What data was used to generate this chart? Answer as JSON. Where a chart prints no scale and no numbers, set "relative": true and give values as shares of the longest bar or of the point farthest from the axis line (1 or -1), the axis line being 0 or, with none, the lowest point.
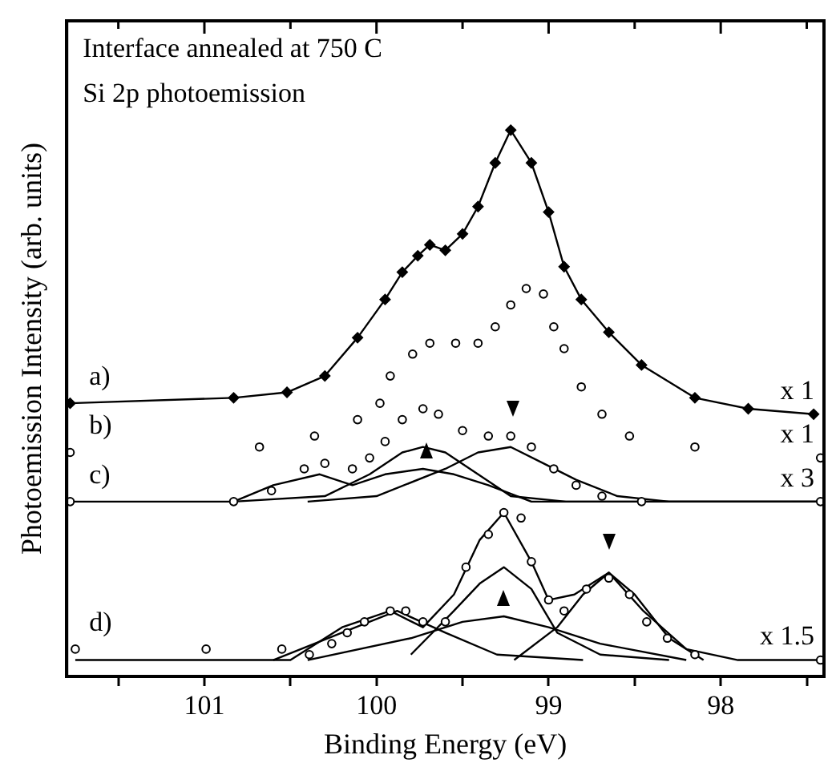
{
  "chart_data": {
    "type": "line",
    "relative": true,
    "xlabel": "Binding Energy (eV)",
    "ylabel": "Photoemission Intensity (arb. units)",
    "xlim": [
      101.8,
      97.4
    ],
    "xticks": [
      {
        "value": 101.5,
        "label": null
      },
      101,
      {
        "value": 100.5,
        "label": null
      },
      100,
      {
        "value": 99.5,
        "label": null
      },
      99,
      {
        "value": 98.5,
        "label": null
      },
      98,
      {
        "value": 97.5,
        "label": null
      }
    ],
    "tick_labels": "x",
    "grid": false,
    "legend": false,
    "series": [
      {
        "marker": "diamond",
        "color": "#000000",
        "x": [
          101.78,
          100.83,
          100.52,
          100.3,
          100.11,
          99.95,
          99.85,
          99.76,
          99.69,
          99.6,
          99.5,
          99.41,
          99.31,
          99.22,
          99.1,
          99.0,
          98.91,
          98.81,
          98.65,
          98.46,
          98.15,
          97.84,
          97.46
        ],
        "values": [
          0.5,
          0.51,
          0.52,
          0.55,
          0.62,
          0.69,
          0.74,
          0.77,
          0.79,
          0.78,
          0.81,
          0.86,
          0.94,
          1.0,
          0.94,
          0.85,
          0.75,
          0.69,
          0.63,
          0.57,
          0.51,
          0.49,
          0.48
        ]
      },
      {
        "type": "scatter",
        "marker": "circle",
        "color": "#000000",
        "x": [
          101.78,
          100.68,
          100.36,
          100.11,
          99.98,
          99.92,
          99.79,
          99.69,
          99.54,
          99.41,
          99.31,
          99.22,
          99.13,
          99.03,
          98.97,
          98.91,
          98.81,
          98.69,
          98.53,
          98.15,
          97.42
        ],
        "values": [
          0.41,
          0.42,
          0.44,
          0.47,
          0.5,
          0.55,
          0.59,
          0.61,
          0.61,
          0.61,
          0.64,
          0.68,
          0.71,
          0.7,
          0.64,
          0.6,
          0.53,
          0.48,
          0.44,
          0.42,
          0.4
        ]
      },
      {
        "type": "scatter",
        "marker": "circle",
        "color": "#000000",
        "x": [
          101.78,
          100.83,
          100.61,
          100.42,
          100.3,
          100.14,
          100.04,
          99.95,
          99.85,
          99.73,
          99.64,
          99.5,
          99.35,
          99.22,
          99.1,
          98.97,
          98.84,
          98.69,
          98.46,
          97.42
        ],
        "values": [
          0.32,
          0.32,
          0.34,
          0.38,
          0.39,
          0.38,
          0.4,
          0.43,
          0.47,
          0.49,
          0.48,
          0.45,
          0.44,
          0.44,
          0.42,
          0.38,
          0.35,
          0.33,
          0.32,
          0.32
        ]
      },
      {
        "type": "line",
        "marker": "none",
        "color": "#000000",
        "x": [
          101.78,
          100.83,
          100.6,
          100.33,
          100.14,
          99.95,
          99.73,
          99.55,
          99.35,
          99.1,
          98.69,
          97.42
        ],
        "values": [
          0.32,
          0.32,
          0.35,
          0.37,
          0.35,
          0.37,
          0.38,
          0.37,
          0.35,
          0.32,
          0.32,
          0.32
        ]
      },
      {
        "type": "line",
        "marker": "none",
        "color": "#000000",
        "x": [
          100.83,
          100.3,
          100.04,
          99.85,
          99.73,
          99.6,
          99.41,
          99.22,
          98.9,
          97.42
        ],
        "values": [
          0.32,
          0.33,
          0.37,
          0.41,
          0.42,
          0.41,
          0.37,
          0.33,
          0.32,
          0.32
        ]
      },
      {
        "type": "line",
        "marker": "none",
        "color": "#000000",
        "x": [
          100.4,
          100.0,
          99.6,
          99.41,
          99.22,
          99.03,
          98.84,
          98.6,
          98.3,
          97.42
        ],
        "values": [
          0.32,
          0.33,
          0.38,
          0.41,
          0.42,
          0.39,
          0.36,
          0.33,
          0.32,
          0.32
        ]
      },
      {
        "type": "scatter",
        "marker": "circle",
        "color": "#000000",
        "x": [
          101.75,
          100.99,
          100.55,
          100.39,
          100.26,
          100.17,
          100.07,
          99.92,
          99.83,
          99.73,
          99.6,
          99.48,
          99.35,
          99.26,
          99.16,
          99.1,
          99.0,
          98.91,
          98.78,
          98.65,
          98.53,
          98.43,
          98.31,
          98.15,
          97.42
        ],
        "values": [
          0.05,
          0.05,
          0.05,
          0.04,
          0.06,
          0.08,
          0.1,
          0.12,
          0.12,
          0.1,
          0.1,
          0.2,
          0.26,
          0.3,
          0.29,
          0.21,
          0.14,
          0.12,
          0.16,
          0.18,
          0.15,
          0.1,
          0.07,
          0.04,
          0.03
        ]
      },
      {
        "type": "line",
        "marker": "none",
        "color": "#000000",
        "x": [
          101.75,
          100.5,
          100.2,
          99.92,
          99.73,
          99.55,
          99.4,
          99.26,
          99.1,
          99.0,
          98.85,
          98.65,
          98.45,
          98.2,
          97.9,
          97.42
        ],
        "values": [
          0.03,
          0.03,
          0.09,
          0.12,
          0.09,
          0.15,
          0.25,
          0.3,
          0.21,
          0.14,
          0.15,
          0.19,
          0.12,
          0.05,
          0.03,
          0.03
        ]
      },
      {
        "type": "line",
        "marker": "none",
        "color": "#000000",
        "x": [
          100.6,
          100.2,
          99.88,
          99.6,
          99.3,
          98.8
        ],
        "values": [
          0.03,
          0.08,
          0.12,
          0.08,
          0.04,
          0.03
        ]
      },
      {
        "type": "line",
        "marker": "none",
        "color": "#000000",
        "x": [
          99.8,
          99.55,
          99.4,
          99.26,
          99.1,
          98.95,
          98.7,
          98.3
        ],
        "values": [
          0.04,
          0.12,
          0.17,
          0.2,
          0.16,
          0.08,
          0.04,
          0.03
        ]
      },
      {
        "type": "line",
        "marker": "none",
        "color": "#000000",
        "x": [
          100.4,
          99.8,
          99.5,
          99.26,
          99.0,
          98.7,
          98.2
        ],
        "values": [
          0.03,
          0.07,
          0.1,
          0.11,
          0.09,
          0.06,
          0.03
        ]
      },
      {
        "type": "line",
        "marker": "none",
        "color": "#000000",
        "x": [
          99.2,
          98.95,
          98.8,
          98.65,
          98.5,
          98.3,
          98.1
        ],
        "values": [
          0.03,
          0.09,
          0.15,
          0.19,
          0.15,
          0.07,
          0.03
        ]
      }
    ],
    "annotations": [
      "Interface annealed at 750 C",
      "Si 2p photoemission",
      "a)",
      "b)",
      "c)",
      "d)",
      "x 1",
      "x 1",
      "x 3",
      "x 1.5"
    ]
  }
}
